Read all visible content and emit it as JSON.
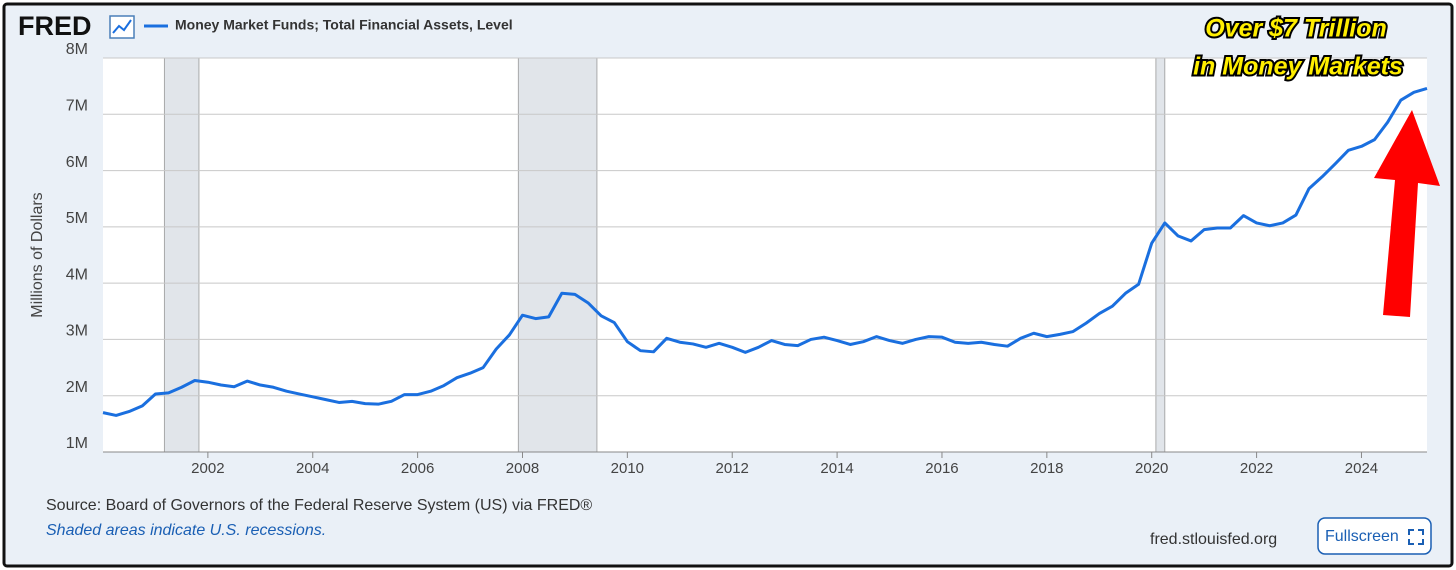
{
  "logo": "FRED",
  "chart_data": {
    "type": "line",
    "ylabel": "Millions of Dollars",
    "annotation": [
      "Over $7 Trillion",
      "in Money Markets"
    ],
    "series": [
      {
        "name": "Money Market Funds; Total Financial Assets, Level",
        "color": "#1a6fdf",
        "values": [
          1700000,
          1650000,
          1720000,
          1820000,
          2030000,
          2050000,
          2150000,
          2270000,
          2240000,
          2190000,
          2160000,
          2260000,
          2190000,
          2150000,
          2080000,
          2030000,
          1980000,
          1930000,
          1880000,
          1900000,
          1860000,
          1850000,
          1900000,
          2020000,
          2020000,
          2080000,
          2180000,
          2320000,
          2400000,
          2500000,
          2830000,
          3080000,
          3430000,
          3370000,
          3400000,
          3820000,
          3800000,
          3650000,
          3420000,
          3300000,
          2960000,
          2800000,
          2780000,
          3020000,
          2950000,
          2920000,
          2860000,
          2930000,
          2860000,
          2770000,
          2860000,
          2980000,
          2910000,
          2890000,
          3000000,
          3040000,
          2980000,
          2910000,
          2960000,
          3050000,
          2980000,
          2930000,
          3000000,
          3050000,
          3040000,
          2950000,
          2930000,
          2950000,
          2910000,
          2880000,
          3020000,
          3110000,
          3050000,
          3090000,
          3140000,
          3290000,
          3460000,
          3590000,
          3820000,
          3980000,
          4710000,
          5070000,
          4840000,
          4750000,
          4950000,
          4980000,
          4980000,
          5200000,
          5070000,
          5020000,
          5070000,
          5210000,
          5680000,
          5890000,
          6120000,
          6360000,
          6430000,
          6550000,
          6860000,
          7250000,
          7390000,
          7460000
        ]
      }
    ],
    "x": [
      2000,
      2000.25,
      2000.5,
      2000.75,
      2001,
      2001.25,
      2001.5,
      2001.75,
      2002,
      2002.25,
      2002.5,
      2002.75,
      2003,
      2003.25,
      2003.5,
      2003.75,
      2004,
      2004.25,
      2004.5,
      2004.75,
      2005,
      2005.25,
      2005.5,
      2005.75,
      2006,
      2006.25,
      2006.5,
      2006.75,
      2007,
      2007.25,
      2007.5,
      2007.75,
      2008,
      2008.25,
      2008.5,
      2008.75,
      2009,
      2009.25,
      2009.5,
      2009.75,
      2010,
      2010.25,
      2010.5,
      2010.75,
      2011,
      2011.25,
      2011.5,
      2011.75,
      2012,
      2012.25,
      2012.5,
      2012.75,
      2013,
      2013.25,
      2013.5,
      2013.75,
      2014,
      2014.25,
      2014.5,
      2014.75,
      2015,
      2015.25,
      2015.5,
      2015.75,
      2016,
      2016.25,
      2016.5,
      2016.75,
      2017,
      2017.25,
      2017.5,
      2017.75,
      2018,
      2018.25,
      2018.5,
      2018.75,
      2019,
      2019.25,
      2019.5,
      2019.75,
      2020,
      2020.25,
      2020.5,
      2020.75,
      2021,
      2021.25,
      2021.5,
      2021.75,
      2022,
      2022.25,
      2022.5,
      2022.75,
      2023,
      2023.25,
      2023.5,
      2023.75,
      2024,
      2024.25,
      2024.5,
      2024.75,
      2025,
      2025.25
    ],
    "xlim": [
      2000,
      2025.25
    ],
    "xticks": [
      2002,
      2004,
      2006,
      2008,
      2010,
      2012,
      2014,
      2016,
      2018,
      2020,
      2022,
      2024
    ],
    "ylim": [
      1000000,
      8000000
    ],
    "yticks": [
      {
        "value": 1000000,
        "label": "1M"
      },
      {
        "value": 2000000,
        "label": "2M"
      },
      {
        "value": 3000000,
        "label": "3M"
      },
      {
        "value": 4000000,
        "label": "4M"
      },
      {
        "value": 5000000,
        "label": "5M"
      },
      {
        "value": 6000000,
        "label": "6M"
      },
      {
        "value": 7000000,
        "label": "7M"
      },
      {
        "value": 8000000,
        "label": "8M"
      }
    ],
    "grid": true,
    "recessions": [
      [
        2001.17,
        2001.83
      ],
      [
        2007.92,
        2009.42
      ],
      [
        2020.08,
        2020.25
      ]
    ],
    "recession_color": "#e1e5ea"
  },
  "footer": {
    "source": "Source: Board of Governors of the Federal Reserve System (US) via FRED®",
    "note": "Shaded areas indicate U.S. recessions.",
    "site": "fred.stlouisfed.org",
    "button": "Fullscreen"
  }
}
